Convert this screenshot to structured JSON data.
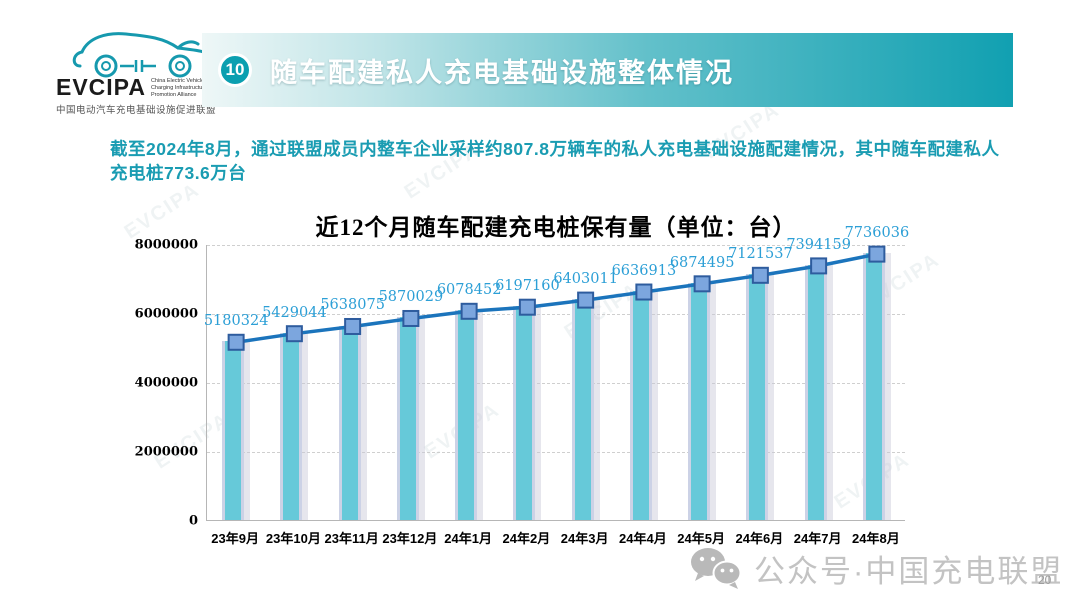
{
  "logo": {
    "brand": "EVCIPA",
    "sub1": "China Electric Vehicle",
    "sub2": "Charging Infrastructure",
    "sub3": "Promotion Alliance",
    "cn_name": "中国电动汽车充电基础设施促进联盟"
  },
  "header": {
    "badge": "10",
    "title": "随车配建私人充电基础设施整体情况"
  },
  "intro": {
    "text": "截至2024年8月，通过联盟成员内整车企业采样约807.8万辆车的私人充电基础设施配建情况，其中随车配建私人充电桩773.6万台"
  },
  "chart_data": {
    "type": "bar",
    "line_overlay": true,
    "title": "近12个月随车配建充电桩保有量（单位：台）",
    "categories": [
      "23年9月",
      "23年10月",
      "23年11月",
      "23年12月",
      "24年1月",
      "24年2月",
      "24年3月",
      "24年4月",
      "24年5月",
      "24年6月",
      "24年7月",
      "24年8月"
    ],
    "values": [
      5180324,
      5429044,
      5638075,
      5870029,
      6078452,
      6197160,
      6403011,
      6636913,
      6874495,
      7121537,
      7394159,
      7736036
    ],
    "xlabel": "",
    "ylabel": "",
    "ylim": [
      0,
      8000000
    ],
    "yticks": [
      0,
      2000000,
      4000000,
      6000000,
      8000000
    ],
    "grid": "horizontal-dashed",
    "legend": "none",
    "data_labels": true
  },
  "colors": {
    "bar_fill": "#66c9d9",
    "bar_edge": "#ccd2e6",
    "trend_line": "#1b74bc",
    "marker_fill": "#7ca6de",
    "marker_border": "#2e5c9e",
    "data_label": "#2c9fd6",
    "banner_teal": "#11a0b1",
    "intro_text": "#1a9cb2",
    "logo_teal": "#1699ae",
    "watermark_gray": "#c3c3c3"
  },
  "watermark": {
    "text": "EVCIPA"
  },
  "footer": {
    "wechat_label": "公众号·中国充电联盟",
    "page_number": "20"
  }
}
